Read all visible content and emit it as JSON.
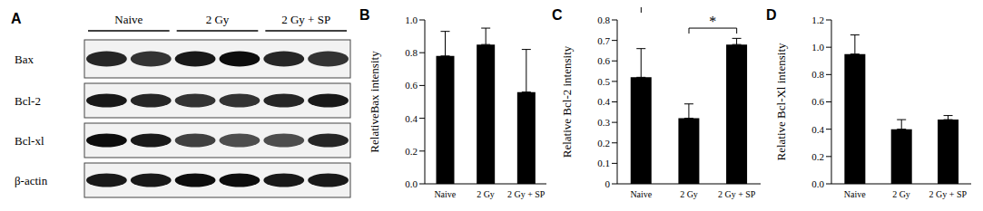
{
  "blot": {
    "title": "A",
    "groups": [
      "Naive",
      "2 Gy",
      "2 Gy + SP"
    ],
    "rows": [
      "Bax",
      "Bcl-2",
      "Bcl-xl",
      "β-actin"
    ]
  },
  "chart_data": [
    {
      "type": "bar",
      "title": "B",
      "categories": [
        "Naive",
        "2 Gy",
        "2 Gy + SP"
      ],
      "values": [
        0.78,
        0.85,
        0.56
      ],
      "errors": [
        0.15,
        0.1,
        0.26
      ],
      "color": "#000000",
      "ylabel": "RelativeBax intensity",
      "ylim": [
        0,
        1.0
      ],
      "yticks": [
        {
          "value": 0,
          "label": "0.0"
        },
        0.2,
        0.4,
        0.6,
        0.8,
        {
          "value": 1,
          "label": "1.0"
        }
      ]
    },
    {
      "type": "bar",
      "title": "C",
      "categories": [
        "Naive",
        "2 Gy",
        "2 Gy + SP"
      ],
      "values": [
        0.52,
        0.32,
        0.68
      ],
      "errors": [
        0.14,
        0.07,
        0.03
      ],
      "color": "#000000",
      "ylabel": "Relative Bcl-2 intensity",
      "ylim": [
        0,
        0.8
      ],
      "yticks": [
        0,
        0.1,
        0.2,
        0.3,
        0.4,
        0.5,
        0.6,
        0.7,
        0.8
      ],
      "annotations": [
        {
          "text": "*",
          "x": [
            "2 Gy",
            "2 Gy + SP"
          ],
          "y": 0.76
        }
      ]
    },
    {
      "type": "bar",
      "title": "D",
      "categories": [
        "Naive",
        "2 Gy",
        "2 Gy + SP"
      ],
      "values": [
        0.95,
        0.4,
        0.47
      ],
      "errors": [
        0.14,
        0.07,
        0.03
      ],
      "color": "#000000",
      "ylabel": "Relative Bcl-Xl intensity",
      "ylim": [
        0,
        1.2
      ],
      "yticks": [
        {
          "value": 0,
          "label": "0.0"
        },
        0.2,
        0.4,
        0.6,
        0.8,
        {
          "value": 1,
          "label": "1.0"
        },
        1.2
      ]
    }
  ]
}
